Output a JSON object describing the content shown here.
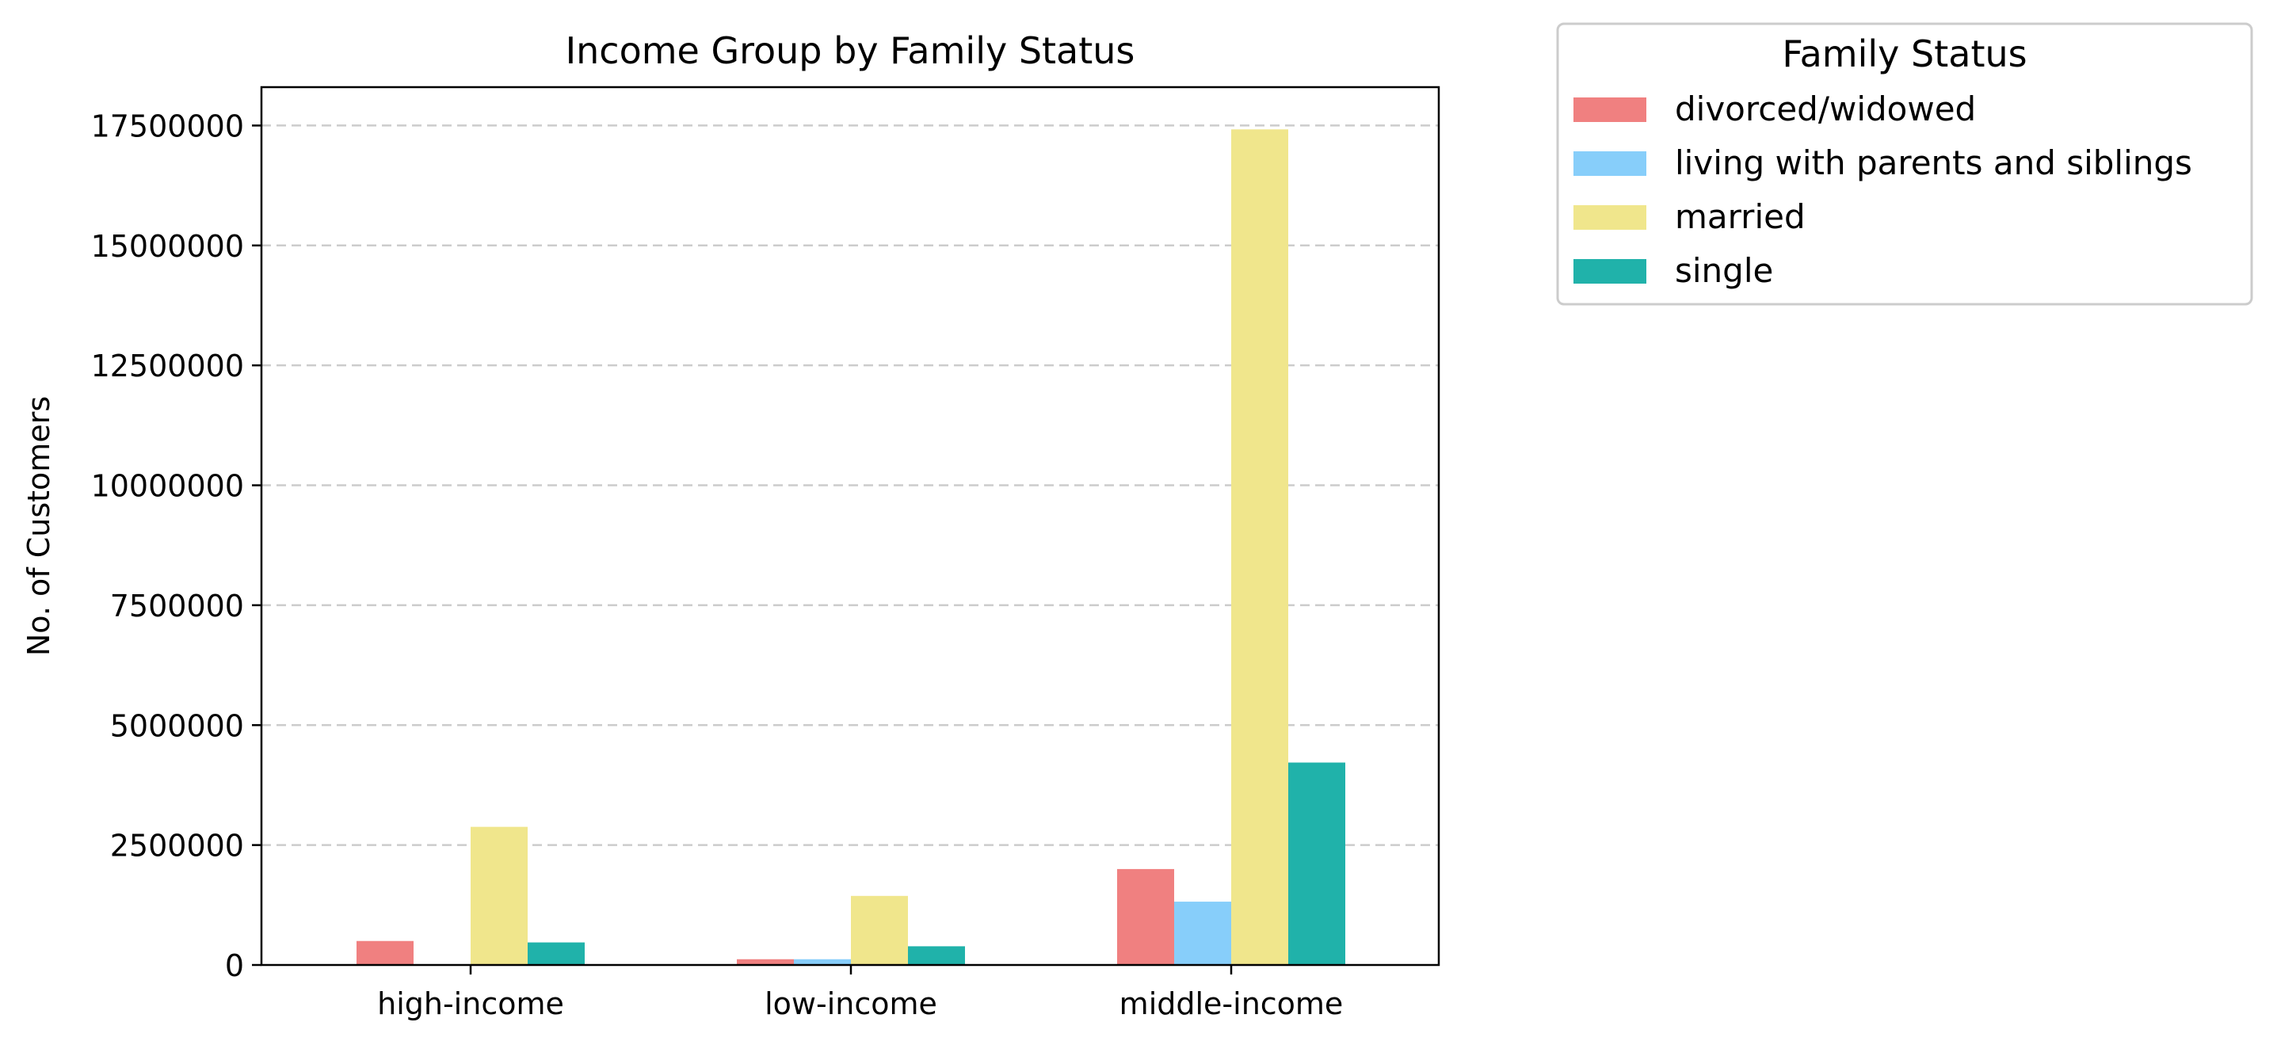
{
  "chart_data": {
    "type": "bar",
    "title": "Income Group by Family Status",
    "xlabel": "",
    "ylabel": "No. of Customers",
    "categories": [
      "high-income",
      "low-income",
      "middle-income"
    ],
    "ylim": [
      0,
      18300000
    ],
    "yticks": [
      0,
      2500000,
      5000000,
      7500000,
      10000000,
      12500000,
      15000000,
      17500000
    ],
    "ytick_labels": [
      "0",
      "2500000",
      "5000000",
      "7500000",
      "10000000",
      "12500000",
      "15000000",
      "17500000"
    ],
    "grid": "y-dashed",
    "legend": {
      "title": "Family Status",
      "placement": "outside-top-right"
    },
    "series": [
      {
        "name": "divorced/widowed",
        "color": "#F08080",
        "values": [
          500000,
          120000,
          2000000
        ]
      },
      {
        "name": "living with parents and siblings",
        "color": "#87CEFA",
        "values": [
          0,
          120000,
          1320000
        ]
      },
      {
        "name": "married",
        "color": "#F0E68C",
        "values": [
          2880000,
          1440000,
          17420000
        ]
      },
      {
        "name": "single",
        "color": "#20B2AA",
        "values": [
          470000,
          390000,
          4220000
        ]
      }
    ]
  }
}
